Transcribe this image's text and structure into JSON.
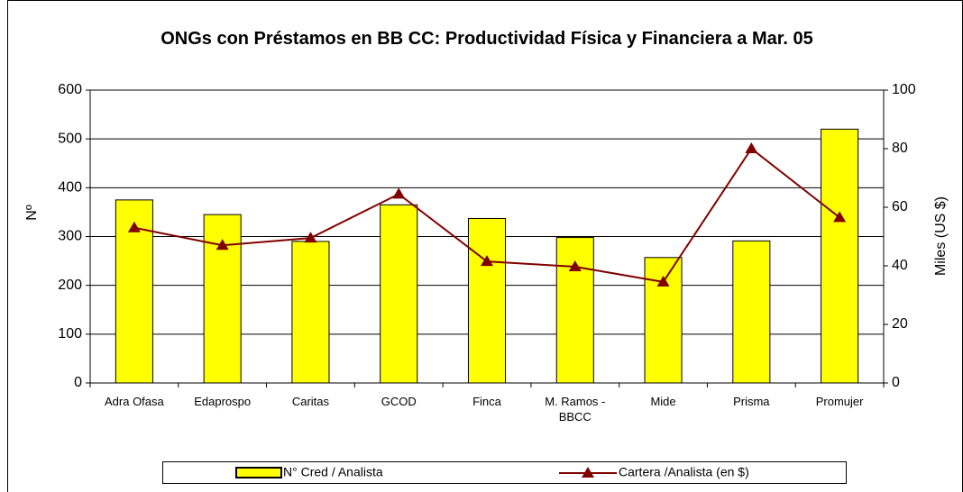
{
  "chart_data": {
    "type": "bar_line",
    "title": "ONGs con Préstamos en BB CC:  Productividad Física y Financiera a Mar. 05",
    "categories": [
      "Adra Ofasa",
      "Edaprospo",
      "Caritas",
      "GCOD",
      "Finca",
      "M. Ramos - BBCC",
      "Mide",
      "Prisma",
      "Promujer"
    ],
    "series": [
      {
        "name": "N° Cred / Analista",
        "type": "bar",
        "color": "#ffff00",
        "values": [
          375,
          345,
          290,
          365,
          337,
          298,
          257,
          291,
          520
        ]
      },
      {
        "name": "Cartera /Analista (en $)",
        "type": "line",
        "axis": "y2",
        "color": "#800000",
        "values": [
          53,
          47,
          49.5,
          64.5,
          41.5,
          39.7,
          34.5,
          80,
          56.5
        ]
      }
    ],
    "y_label": "Nº",
    "y2_label": "Miles (US $)",
    "ylim": [
      0,
      600
    ],
    "yticks": [
      0,
      100,
      200,
      300,
      400,
      500,
      600
    ],
    "y2lim": [
      0,
      100
    ],
    "y2ticks": [
      0,
      20,
      40,
      60,
      80,
      100
    ],
    "grid": true,
    "legend": "bottom"
  }
}
